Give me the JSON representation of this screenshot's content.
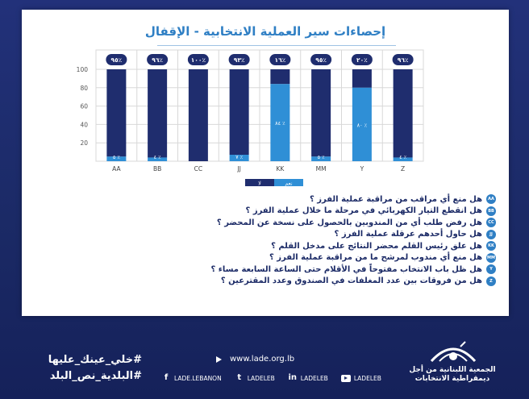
{
  "title": "إحصاءات سير العملية الانتخابية - الإقفال",
  "chart_data": {
    "type": "bar",
    "stacked": true,
    "categories": [
      "AA",
      "BB",
      "CC",
      "JJ",
      "KK",
      "MM",
      "Y",
      "Z"
    ],
    "series": [
      {
        "name": "لا",
        "values": [
          95,
          96,
          100,
          93,
          16,
          95,
          20,
          96
        ],
        "labels": [
          "٩٥٪",
          "٩٦٪",
          "١٠٠٪",
          "٩٣٪",
          "١٦٪",
          "٩٥٪",
          "٢٠٪",
          "٩٦٪"
        ]
      },
      {
        "name": "نعم",
        "values": [
          5,
          4,
          0,
          7,
          84,
          5,
          80,
          4
        ],
        "labels": [
          "٥ ٪",
          "٤ ٪",
          "",
          "٧ ٪",
          "٨٤ ٪",
          "٥ ٪",
          "٨٠ ٪",
          "٤ ٪"
        ]
      }
    ],
    "yticks": [
      20,
      40,
      60,
      80,
      100
    ],
    "ylim": [
      0,
      100
    ],
    "grid": true,
    "legend_position": "bottom-center",
    "colors": {
      "no": "#1f2d6e",
      "yes": "#2f8fd6",
      "grid": "#d8d8d8"
    }
  },
  "legend": {
    "no_label": "لا",
    "yes_label": "نعم"
  },
  "questions": [
    {
      "code": "AA",
      "text": "هل منع أي مراقب من مراقبة عملية الفرز ؟"
    },
    {
      "code": "BB",
      "text": "هل انقطع التيار الكهربائي في مرحلة ما خلال عملية الفرز ؟"
    },
    {
      "code": "CC",
      "text": "هل رفض طلب أي من المندوبين بالحصول على نسخة عن المحضر ؟"
    },
    {
      "code": "JJ",
      "text": "هل حاول أحدهم عرقلة عملية الفرز ؟"
    },
    {
      "code": "KK",
      "text": "هل علق رئيس القلم محضر النتائج على مدخل القلم ؟"
    },
    {
      "code": "MM",
      "text": "هل منع أي مندوب لمرشح ما من مراقبة عملية الفرز ؟"
    },
    {
      "code": "Y",
      "text": "هل ظل باب الانتخاب مفتوحاً في الأقلام حتى الساعة السابعة مساء ؟"
    },
    {
      "code": "Z",
      "text": "هل من فروقات بين عدد المغلفات في الصندوق وعدد المقترعين ؟"
    }
  ],
  "footer": {
    "org_line1": "الجمعية اللبنانية من أجل",
    "org_line2": "ديمقراطية الانتخابات",
    "hashtag1": "#خلي_عينك_عليها",
    "hashtag2": "#البلدية_نص_البلد",
    "website": "www.lade.org.lb",
    "socials": [
      {
        "icon": "facebook-icon",
        "glyph": "f",
        "label": "LADE.LEBANON"
      },
      {
        "icon": "twitter-icon",
        "glyph": "t",
        "label": "LADELEB"
      },
      {
        "icon": "linkedin-icon",
        "glyph": "in",
        "label": "LADELEB"
      },
      {
        "icon": "youtube-icon",
        "glyph": "",
        "label": "LADELEB"
      }
    ]
  }
}
